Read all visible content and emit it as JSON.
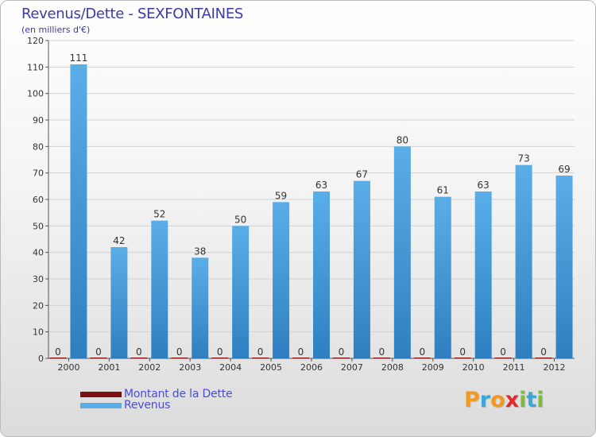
{
  "title": "Revenus/Dette - SEXFONTAINES",
  "subtitle": "(en milliers d'€)",
  "legend": {
    "debt_label": "Montant de la Dette",
    "revenue_label": "Revenus"
  },
  "logo": {
    "letters": [
      "P",
      "r",
      "o",
      "x",
      "i",
      "t",
      "i"
    ],
    "colors": [
      "#f39a1c",
      "#3aa7d8",
      "#f39a1c",
      "#e6282b",
      "#7dbb3c",
      "#3aa7d8",
      "#7dbb3c"
    ]
  },
  "colors": {
    "debt": "#7a1010",
    "revenue": "#5aaee8",
    "revenue_dark": "#2f7fc0",
    "title": "#3a3aa8",
    "legend_text": "#4b4be0"
  },
  "chart_data": {
    "type": "bar",
    "title": "Revenus/Dette - SEXFONTAINES",
    "ylabel": "(en milliers d'€)",
    "xlabel": "",
    "ylim": [
      0,
      120
    ],
    "yticks": [
      0,
      10,
      20,
      30,
      40,
      50,
      60,
      70,
      80,
      90,
      100,
      110,
      120
    ],
    "categories": [
      "2000",
      "2001",
      "2002",
      "2003",
      "2004",
      "2005",
      "2006",
      "2007",
      "2008",
      "2009",
      "2010",
      "2011",
      "2012"
    ],
    "series": [
      {
        "name": "Montant de la Dette",
        "values": [
          0,
          0,
          0,
          0,
          0,
          0,
          0,
          0,
          0,
          0,
          0,
          0,
          0
        ]
      },
      {
        "name": "Revenus",
        "values": [
          111,
          42,
          52,
          38,
          50,
          59,
          63,
          67,
          80,
          61,
          63,
          73,
          69
        ]
      }
    ],
    "grid": true,
    "legend_position": "bottom-left"
  }
}
